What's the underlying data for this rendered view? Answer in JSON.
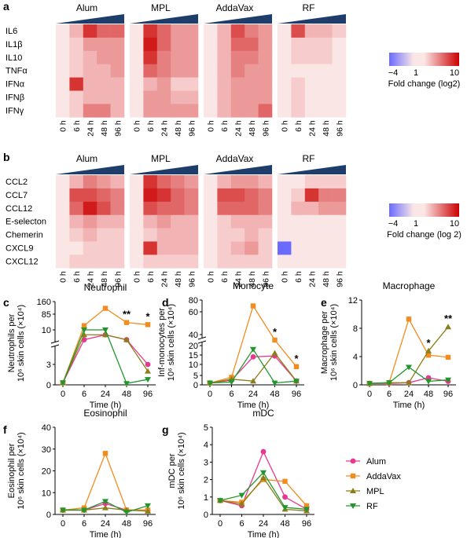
{
  "panels": {
    "a": "a",
    "b": "b",
    "c": "c",
    "d": "d",
    "e": "e",
    "f": "f",
    "g": "g"
  },
  "colors": {
    "Alum": "#e8378f",
    "AddaVax": "#f28c1e",
    "MPL": "#8a7f1a",
    "RF": "#22962c",
    "heat_low": "#6a6aff",
    "heat_mid": "#fbe6e6",
    "heat_high": "#cc0000"
  },
  "chart_data": [
    {
      "type": "heatmap",
      "panel": "a",
      "groups": [
        "Alum",
        "MPL",
        "AddaVax",
        "RF"
      ],
      "columns": [
        "0 h",
        "6 h",
        "24 h",
        "48 h",
        "96 h"
      ],
      "rows": [
        "IL6",
        "IL1β",
        "IL10",
        "TNFα",
        "IFNα",
        "IFNβ",
        "IFNγ"
      ],
      "values": [
        [
          [
            1,
            3,
            8,
            6,
            6
          ],
          [
            1,
            2,
            4,
            4,
            4
          ],
          [
            1,
            2,
            3,
            4,
            4
          ],
          [
            1,
            2,
            3,
            3,
            4
          ],
          [
            1,
            8,
            3,
            3,
            3
          ],
          [
            1,
            2,
            3,
            3,
            3
          ],
          [
            1,
            2,
            5,
            5,
            3
          ]
        ],
        [
          [
            1,
            8,
            6,
            4,
            4
          ],
          [
            1,
            9,
            6,
            4,
            4
          ],
          [
            1,
            8,
            5,
            4,
            4
          ],
          [
            1,
            6,
            5,
            4,
            4
          ],
          [
            1,
            3,
            4,
            2,
            2
          ],
          [
            1,
            4,
            4,
            3,
            3
          ],
          [
            1,
            4,
            4,
            4,
            4
          ]
        ],
        [
          [
            1,
            3,
            7,
            5,
            4
          ],
          [
            1,
            3,
            6,
            6,
            4
          ],
          [
            1,
            3,
            5,
            5,
            4
          ],
          [
            1,
            3,
            5,
            4,
            4
          ],
          [
            1,
            3,
            4,
            4,
            4
          ],
          [
            1,
            3,
            4,
            4,
            4
          ],
          [
            1,
            3,
            4,
            4,
            6
          ]
        ],
        [
          [
            1,
            7,
            3,
            3,
            2
          ],
          [
            1,
            2,
            2,
            2,
            1
          ],
          [
            1,
            2,
            2,
            2,
            1
          ],
          [
            1,
            1,
            1,
            1,
            1
          ],
          [
            1,
            2,
            1,
            1,
            1
          ],
          [
            1,
            2,
            1,
            1,
            1
          ],
          [
            1,
            2,
            1,
            1,
            1
          ]
        ]
      ],
      "legend": {
        "ticks": [
          "−4",
          "1",
          "10"
        ],
        "label": "Fold change (log2)"
      }
    },
    {
      "type": "heatmap",
      "panel": "b",
      "groups": [
        "Alum",
        "MPL",
        "AddaVax",
        "RF"
      ],
      "columns": [
        "0 h",
        "6 h",
        "24 h",
        "48 h",
        "96 h"
      ],
      "rows": [
        "CCL2",
        "CCL7",
        "CCL12",
        "E-selecton",
        "Chemerin",
        "CXCL9",
        "CXCL12"
      ],
      "values": [
        [
          [
            1,
            3,
            5,
            4,
            3
          ],
          [
            1,
            7,
            7,
            6,
            5
          ],
          [
            1,
            6,
            9,
            7,
            5
          ],
          [
            1,
            3,
            4,
            3,
            3
          ],
          [
            1,
            2,
            3,
            2,
            2
          ],
          [
            1,
            1,
            2,
            2,
            2
          ],
          [
            1,
            2,
            2,
            2,
            2
          ]
        ],
        [
          [
            1,
            8,
            6,
            5,
            4
          ],
          [
            1,
            9,
            8,
            6,
            5
          ],
          [
            1,
            7,
            6,
            6,
            5
          ],
          [
            1,
            3,
            4,
            3,
            3
          ],
          [
            1,
            2,
            3,
            3,
            3
          ],
          [
            1,
            8,
            3,
            3,
            3
          ],
          [
            1,
            2,
            2,
            2,
            2
          ]
        ],
        [
          [
            1,
            3,
            4,
            4,
            3
          ],
          [
            1,
            7,
            7,
            6,
            5
          ],
          [
            1,
            6,
            6,
            6,
            5
          ],
          [
            1,
            2,
            3,
            3,
            3
          ],
          [
            1,
            2,
            2,
            3,
            2
          ],
          [
            1,
            2,
            3,
            4,
            2
          ],
          [
            1,
            2,
            2,
            2,
            2
          ]
        ],
        [
          [
            1,
            1,
            2,
            2,
            2
          ],
          [
            1,
            2,
            8,
            5,
            5
          ],
          [
            1,
            3,
            3,
            4,
            4
          ],
          [
            1,
            1,
            1,
            1,
            1
          ],
          [
            1,
            1,
            1,
            1,
            1
          ],
          [
            -4,
            1,
            1,
            1,
            1
          ],
          [
            1,
            1,
            1,
            1,
            1
          ]
        ]
      ],
      "legend": {
        "ticks": [
          "−4",
          "1",
          "10"
        ],
        "label": "Fold change (log 2)"
      }
    },
    {
      "type": "line",
      "panel": "c",
      "title": "Neutrophil",
      "ylabel": "Neutrophils per 10⁶ skin cells (×10⁴)",
      "xlabel": "Time (h)",
      "x": [
        0,
        6,
        24,
        48,
        96
      ],
      "yticks": [
        "0",
        "3",
        "10",
        "85",
        "160"
      ],
      "series": [
        {
          "name": "Alum",
          "values": [
            0.3,
            8,
            9,
            8,
            3
          ]
        },
        {
          "name": "AddaVax",
          "values": [
            0.3,
            30,
            120,
            45,
            35
          ]
        },
        {
          "name": "MPL",
          "values": [
            0.3,
            9,
            9,
            8,
            2
          ]
        },
        {
          "name": "RF",
          "values": [
            0.3,
            10,
            10,
            0.2,
            0.8
          ]
        }
      ],
      "annotations": [
        {
          "x": 48,
          "text": "**"
        },
        {
          "x": 96,
          "text": "*"
        }
      ]
    },
    {
      "type": "line",
      "panel": "d",
      "title": "Monocyte",
      "ylabel": "Inf-monocytes per 10⁶ skin cells (×10⁴)",
      "xlabel": "Time (h)",
      "x": [
        0,
        6,
        24,
        48,
        96
      ],
      "yticks": [
        "0",
        "5",
        "10",
        "15",
        "20",
        "40",
        "60",
        "80"
      ],
      "series": [
        {
          "name": "Alum",
          "values": [
            1,
            2.5,
            14,
            14.5,
            2
          ]
        },
        {
          "name": "AddaVax",
          "values": [
            1,
            4,
            70,
            30,
            9
          ]
        },
        {
          "name": "MPL",
          "values": [
            1,
            3,
            2,
            16,
            2
          ]
        },
        {
          "name": "RF",
          "values": [
            1,
            1.5,
            18,
            1,
            2
          ]
        }
      ],
      "annotations": [
        {
          "x": 48,
          "text": "*"
        },
        {
          "x": 96,
          "text": "*"
        }
      ]
    },
    {
      "type": "line",
      "panel": "e",
      "title": "Macrophage",
      "ylabel": "Macrophage per 10⁶ skin cells (×10⁴)",
      "xlabel": "Time (h)",
      "x": [
        0,
        6,
        24,
        48,
        96
      ],
      "yticks": [
        "0",
        "4",
        "8",
        "12"
      ],
      "ylim": [
        0,
        12
      ],
      "series": [
        {
          "name": "Alum",
          "values": [
            0.2,
            0.2,
            0.3,
            1,
            0.5
          ]
        },
        {
          "name": "AddaVax",
          "values": [
            0.2,
            0.3,
            9.3,
            4.2,
            3.9
          ]
        },
        {
          "name": "MPL",
          "values": [
            0.2,
            0.3,
            0.3,
            4.8,
            8.2
          ]
        },
        {
          "name": "RF",
          "values": [
            0.2,
            0.3,
            2.5,
            0.5,
            0.7
          ]
        }
      ],
      "annotations": [
        {
          "x": 48,
          "text": "*"
        },
        {
          "x": 96,
          "text": "**"
        }
      ]
    },
    {
      "type": "line",
      "panel": "f",
      "title": "Eosinophil",
      "ylabel": "Eosinophil per 10⁶ skin cells (×10⁴)",
      "xlabel": "Time (h)",
      "x": [
        0,
        6,
        24,
        48,
        96
      ],
      "yticks": [
        "0",
        "10",
        "20",
        "30",
        "40"
      ],
      "ylim": [
        0,
        40
      ],
      "series": [
        {
          "name": "Alum",
          "values": [
            2,
            2,
            5,
            2,
            2
          ]
        },
        {
          "name": "AddaVax",
          "values": [
            2,
            3,
            28,
            2,
            2
          ]
        },
        {
          "name": "MPL",
          "values": [
            2,
            2,
            3,
            2,
            1.5
          ]
        },
        {
          "name": "RF",
          "values": [
            2,
            2,
            6,
            1,
            4
          ]
        }
      ]
    },
    {
      "type": "line",
      "panel": "g",
      "title": "mDC",
      "ylabel": "mDC per 10⁶ skin cells (×10⁴)",
      "xlabel": "Time (h)",
      "x": [
        0,
        6,
        24,
        48,
        96
      ],
      "yticks": [
        "0",
        "1",
        "2",
        "3",
        "4",
        "5"
      ],
      "ylim": [
        0,
        5
      ],
      "series": [
        {
          "name": "Alum",
          "values": [
            0.8,
            0.5,
            3.6,
            1.0,
            0.3
          ]
        },
        {
          "name": "AddaVax",
          "values": [
            0.8,
            0.7,
            2.0,
            1.9,
            0.5
          ]
        },
        {
          "name": "MPL",
          "values": [
            0.8,
            0.6,
            2.1,
            0.3,
            0.2
          ]
        },
        {
          "name": "RF",
          "values": [
            0.8,
            1.1,
            2.4,
            0.4,
            0.3
          ]
        }
      ]
    }
  ],
  "legend": [
    "Alum",
    "AddaVax",
    "MPL",
    "RF"
  ]
}
